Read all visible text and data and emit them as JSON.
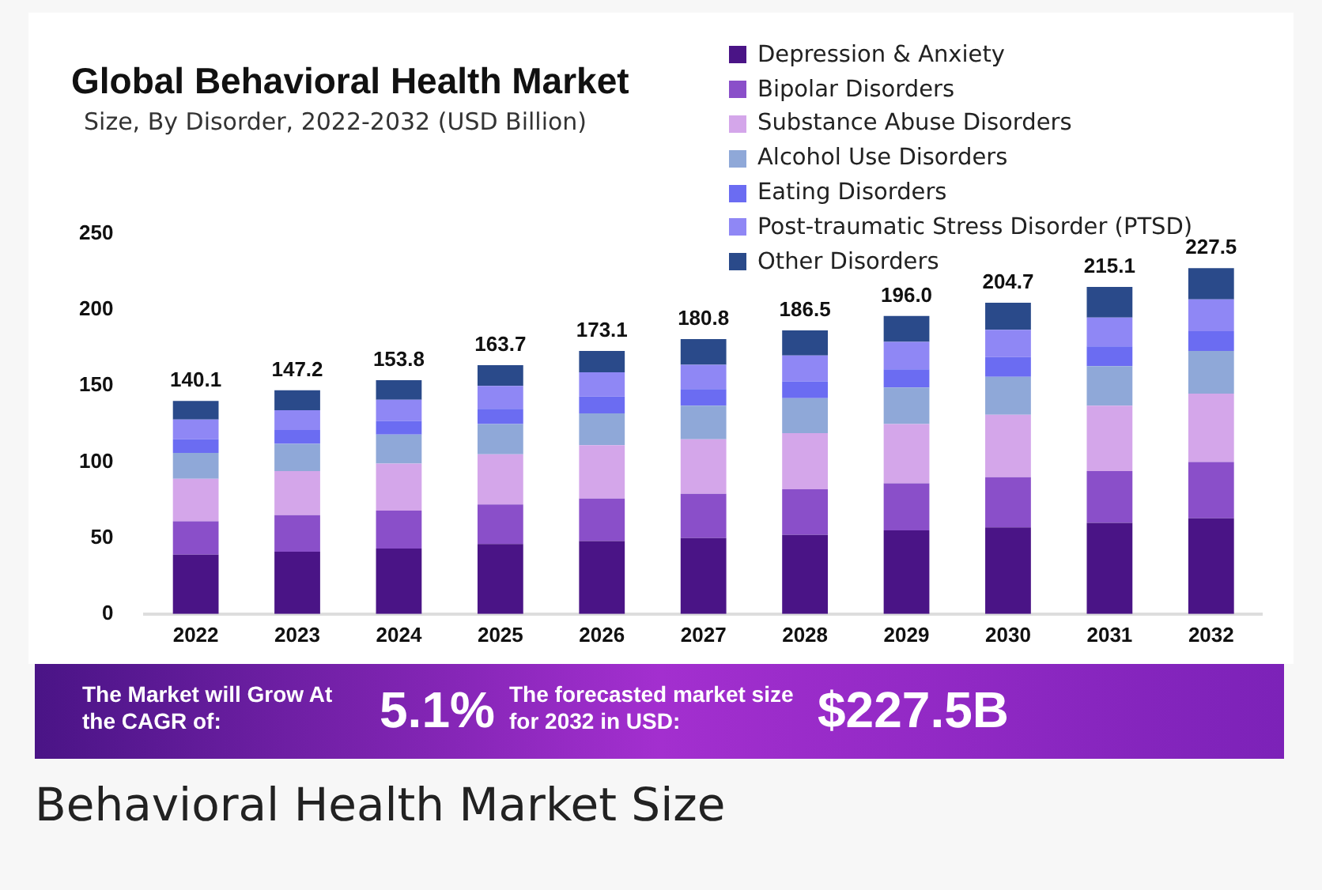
{
  "chart_data": {
    "type": "bar",
    "title": "Global Behavioral Health Market",
    "subtitle": "Size, By Disorder, 2022-2032 (USD Billion)",
    "categories": [
      "2022",
      "2023",
      "2024",
      "2025",
      "2026",
      "2027",
      "2028",
      "2029",
      "2030",
      "2031",
      "2032"
    ],
    "stacked": true,
    "series": [
      {
        "name": "Depression & Anxiety",
        "color": "#4a1486",
        "values": [
          39,
          41,
          43,
          46,
          48,
          50,
          52,
          55,
          57,
          60,
          63
        ]
      },
      {
        "name": "Bipolar Disorders",
        "color": "#8a4fc9",
        "values": [
          22,
          24,
          25,
          26,
          28,
          29,
          30,
          31,
          33,
          34,
          37
        ]
      },
      {
        "name": "Substance Abuse Disorders",
        "color": "#d4a6ea",
        "values": [
          28,
          29,
          31,
          33,
          35,
          36,
          37,
          39,
          41,
          43,
          45
        ]
      },
      {
        "name": "Alcohol Use Disorders",
        "color": "#8fa8d8",
        "values": [
          17,
          18,
          19,
          20,
          21,
          22,
          23,
          24,
          25,
          26,
          28
        ]
      },
      {
        "name": "Eating Disorders",
        "color": "#6b6cf2",
        "values": [
          9,
          9,
          9,
          10,
          11,
          11,
          11,
          12,
          13,
          13,
          13
        ]
      },
      {
        "name": "Post-traumatic Stress Disorder (PTSD)",
        "color": "#8f87f5",
        "values": [
          13,
          13,
          14,
          15,
          16,
          16,
          17,
          18,
          18,
          19,
          21
        ]
      },
      {
        "name": "Other Disorders",
        "color": "#2a4a8a",
        "values": [
          12.1,
          13.2,
          12.8,
          13.7,
          14.1,
          16.8,
          16.5,
          17.0,
          17.7,
          20.1,
          20.5
        ]
      }
    ],
    "totals": [
      "140.1",
      "147.2",
      "153.8",
      "163.7",
      "173.1",
      "180.8",
      "186.5",
      "196.0",
      "204.7",
      "215.1",
      "227.5"
    ],
    "ylim": [
      0,
      250
    ],
    "yticks": [
      0,
      50,
      100,
      150,
      200,
      250
    ],
    "grid": false,
    "legend": "top right",
    "annotations": [
      "The Market will Grow At the CAGR of:",
      "5.1%",
      "The forecasted market size for 2032 in USD:",
      "$227.5B",
      "Behavioral Health Market Size"
    ]
  }
}
